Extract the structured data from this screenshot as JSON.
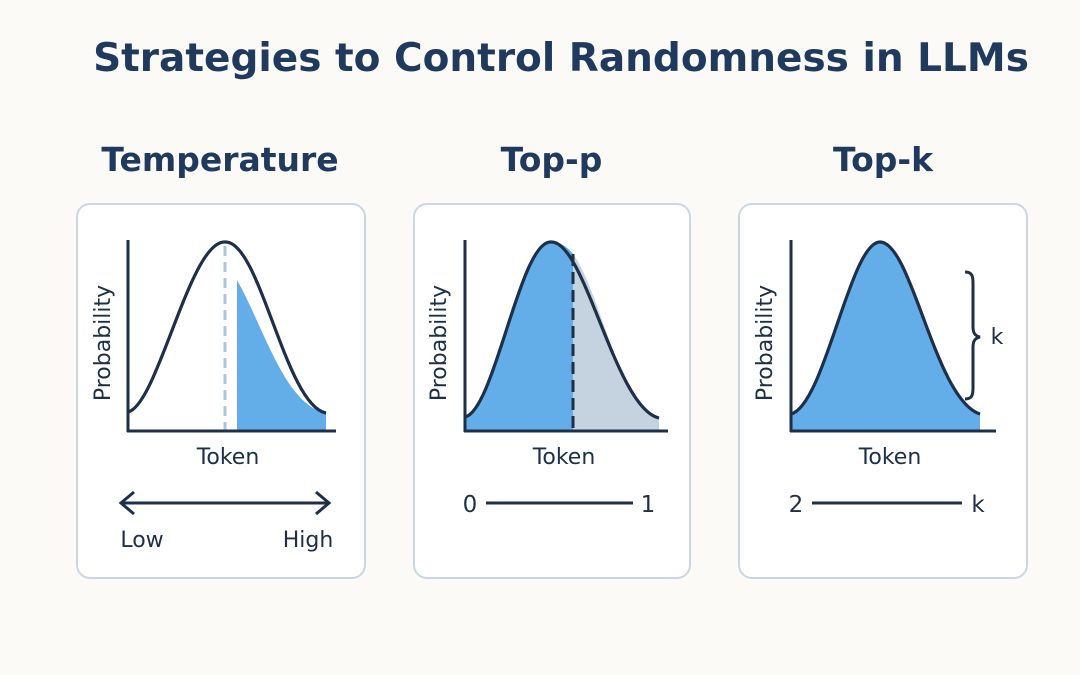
{
  "title": "Strategies to Control Randomness in LLMs",
  "panels": [
    {
      "heading": "Temperature",
      "y_axis_label": "Probability",
      "x_axis_label": "Token",
      "scale": {
        "left": "Low",
        "right": "High"
      }
    },
    {
      "heading": "Top-p",
      "y_axis_label": "Probability",
      "x_axis_label": "Token",
      "scale": {
        "left": "0",
        "right": "1"
      }
    },
    {
      "heading": "Top-k",
      "y_axis_label": "Probability",
      "x_axis_label": "Token",
      "scale": {
        "left": "2",
        "right": "k"
      },
      "bracket_label": "k"
    }
  ],
  "colors": {
    "title": "#1f3a5c",
    "fill_blue": "#63ade8",
    "fill_gray": "#c5d3e0",
    "ink": "#1d2f49",
    "card_border": "#c9d6e6",
    "dashed_light": "#a9c4dc"
  }
}
